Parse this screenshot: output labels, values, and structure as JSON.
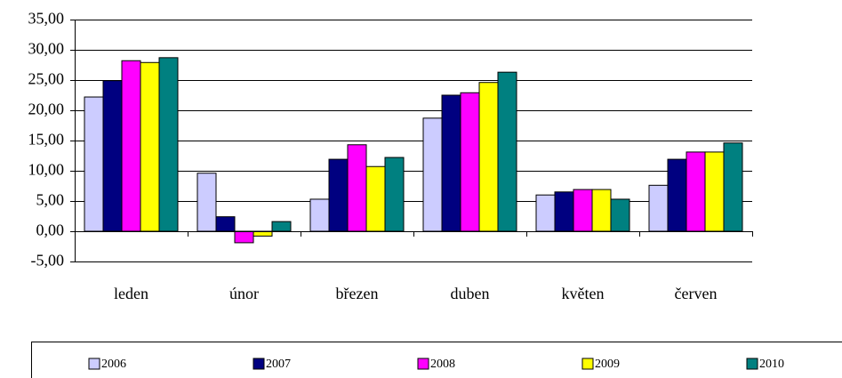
{
  "chart_data": {
    "type": "bar",
    "categories": [
      "leden",
      "únor",
      "březen",
      "duben",
      "květen",
      "červen"
    ],
    "series": [
      {
        "name": "2006",
        "color": "#ccccff",
        "values": [
          22.2,
          9.6,
          5.3,
          18.7,
          6.0,
          7.6
        ]
      },
      {
        "name": "2007",
        "color": "#000080",
        "values": [
          24.9,
          2.4,
          11.9,
          22.5,
          6.5,
          11.9
        ]
      },
      {
        "name": "2008",
        "color": "#ff00ff",
        "values": [
          28.2,
          -1.9,
          14.3,
          22.9,
          6.9,
          13.1
        ]
      },
      {
        "name": "2009",
        "color": "#ffff00",
        "values": [
          27.9,
          -0.8,
          10.7,
          24.6,
          6.9,
          13.1
        ]
      },
      {
        "name": "2010",
        "color": "#008080",
        "values": [
          28.7,
          1.6,
          12.2,
          26.3,
          5.3,
          14.6
        ]
      }
    ],
    "ylim": [
      -5,
      35
    ],
    "yticks": [
      {
        "value": -5,
        "label": "-5,00"
      },
      {
        "value": 0,
        "label": "0,00"
      },
      {
        "value": 5,
        "label": "5,00"
      },
      {
        "value": 10,
        "label": "10,00"
      },
      {
        "value": 15,
        "label": "15,00"
      },
      {
        "value": 20,
        "label": "20,00"
      },
      {
        "value": 25,
        "label": "25,00"
      },
      {
        "value": 30,
        "label": "30,00"
      },
      {
        "value": 35,
        "label": "35,00"
      }
    ],
    "grid": true,
    "legend": "bottom"
  }
}
